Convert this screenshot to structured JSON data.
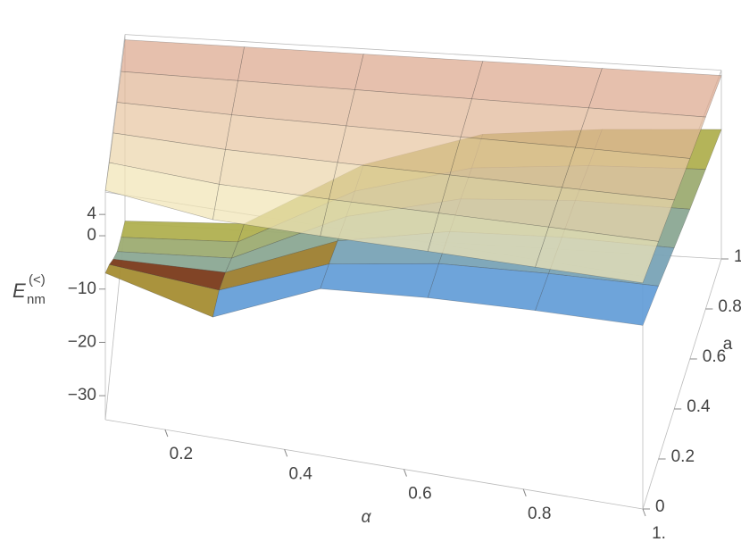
{
  "chart_data": {
    "type": "surface3d",
    "xlabel": "α",
    "ylabel": "a",
    "zlabel": {
      "base": "E",
      "sub": "nm",
      "sup": "(<)"
    },
    "x": [
      0.1,
      0.28,
      0.46,
      0.64,
      0.82,
      1.0
    ],
    "y": [
      0,
      0.2,
      0.4,
      0.6,
      0.8,
      1.0
    ],
    "xlim": [
      0.1,
      1.0
    ],
    "ylim": [
      0,
      1.0
    ],
    "zlim": [
      -34.5,
      8.2
    ],
    "xticks": [
      0.2,
      0.4,
      0.6,
      0.8,
      {
        "value": 1,
        "label": "1."
      }
    ],
    "yticks": [
      0,
      0.2,
      0.4,
      0.6,
      0.8,
      {
        "value": 1,
        "label": "1."
      }
    ],
    "zticks": [
      {
        "value": -30,
        "label": "−30"
      },
      {
        "value": -20,
        "label": "−20"
      },
      {
        "value": -10,
        "label": "−10"
      },
      0,
      4
    ],
    "surfaces": [
      {
        "colors": [
          "#5d9de9",
          "#b9b23f",
          "#7a3a1a"
        ],
        "opacity": 0.95,
        "z": [
          [
            -7,
            -12,
            -3.5,
            -2.0,
            -1.2,
            -0.8
          ],
          [
            -12,
            -14,
            -6,
            -3,
            -2,
            -1.5
          ],
          [
            -18,
            -18,
            -9,
            -4.5,
            -3,
            -2.5
          ],
          [
            -24,
            -23,
            -12,
            -6,
            -4,
            -3.5
          ],
          [
            -29,
            -28,
            -15,
            -8,
            -5.5,
            -4.3
          ],
          [
            -34,
            -33,
            -18,
            -9.5,
            -6.8,
            -5.2
          ]
        ]
      },
      {
        "colors": [
          "#f4ebbb",
          "#d9a088"
        ],
        "opacity": 0.72,
        "z": [
          [
            8.5,
            6.2,
            6.3,
            6.6,
            6.8,
            7.0
          ],
          [
            7.8,
            6.5,
            6.5,
            6.7,
            6.9,
            7.0
          ],
          [
            7.4,
            6.7,
            6.7,
            6.8,
            6.9,
            7.0
          ],
          [
            7.2,
            6.9,
            6.9,
            6.9,
            7.0,
            7.0
          ],
          [
            7.0,
            7.0,
            7.0,
            7.0,
            7.0,
            7.0
          ],
          [
            7.0,
            7.0,
            7.0,
            7.0,
            7.0,
            7.0
          ]
        ]
      }
    ]
  }
}
